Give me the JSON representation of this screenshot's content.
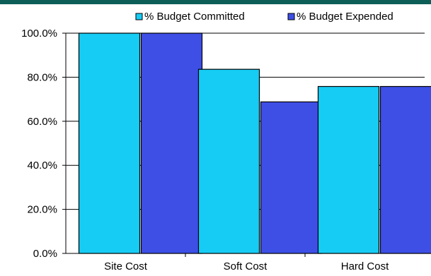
{
  "chart_data": {
    "type": "bar",
    "categories": [
      "Site Cost",
      "Soft Cost",
      "Hard Cost"
    ],
    "series": [
      {
        "name": "% Budget Committed",
        "values": [
          100.0,
          83.6,
          75.8
        ],
        "color": "#16ccf4"
      },
      {
        "name": "% Budget Expended",
        "values": [
          100.0,
          68.8,
          75.8
        ],
        "color": "#3e4fe6"
      }
    ],
    "ylim": [
      0,
      100
    ],
    "yticks": [
      "0.0%",
      "20.0%",
      "40.0%",
      "60.0%",
      "80.0%",
      "100.0%"
    ],
    "grid": true,
    "legend": "top-right",
    "colors": {
      "frame": "#0c5e57",
      "gridline": "#000000"
    }
  }
}
